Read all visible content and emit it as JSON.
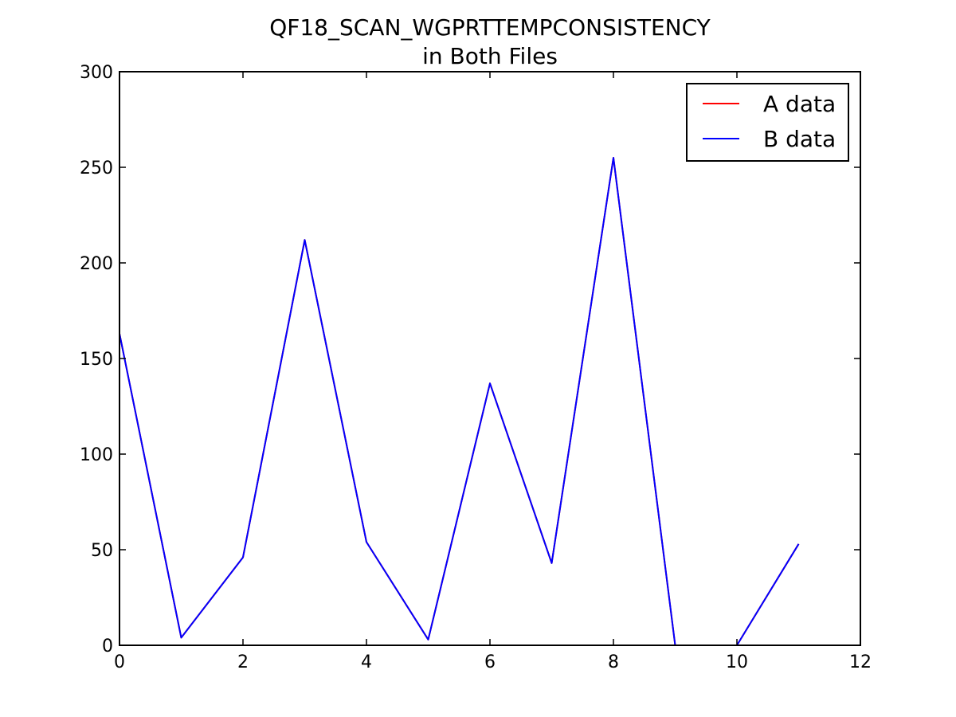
{
  "chart_data": {
    "type": "line",
    "title": "QF18_SCAN_WGPRTTEMPCONSISTENCY",
    "subtitle": "in Both Files",
    "xlabel": "",
    "ylabel": "",
    "xlim": [
      0,
      12
    ],
    "ylim": [
      0,
      300
    ],
    "x_ticks": [
      0,
      2,
      4,
      6,
      8,
      10,
      12
    ],
    "y_ticks": [
      0,
      50,
      100,
      150,
      200,
      250,
      300
    ],
    "grid": false,
    "legend_position": "top-right",
    "series": [
      {
        "name": "A data",
        "color": "#ff0000",
        "x": [
          0,
          1,
          2,
          3,
          4,
          5,
          6,
          7,
          8,
          9,
          10,
          11
        ],
        "y": [
          163,
          4,
          46,
          212,
          54,
          3,
          137,
          43,
          255,
          0,
          0,
          53
        ]
      },
      {
        "name": "B data",
        "color": "#0000ff",
        "x": [
          0,
          1,
          2,
          3,
          4,
          5,
          6,
          7,
          8,
          9,
          10,
          11
        ],
        "y": [
          163,
          4,
          46,
          212,
          54,
          3,
          137,
          43,
          255,
          0,
          0,
          53
        ]
      }
    ],
    "gaps_between": [
      [
        9,
        10
      ]
    ]
  }
}
